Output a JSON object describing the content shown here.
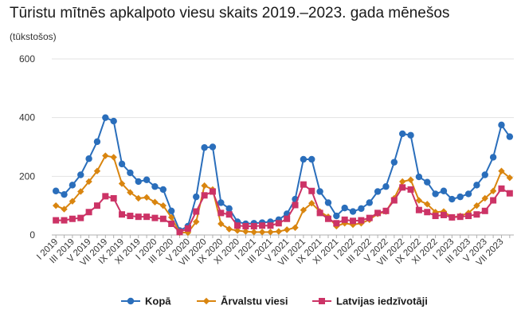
{
  "chart_data": {
    "type": "line",
    "title": "Tūristu mītnēs apkalpoto viesu skaits 2019.–2023. gada mēnešos",
    "subtitle": "(tūkstošos)",
    "xlabel": "",
    "ylabel": "",
    "ylim": [
      0,
      600
    ],
    "yticks": [
      0,
      200,
      400,
      600
    ],
    "grid": "horizontal",
    "legend_position": "bottom",
    "x": [
      "I 2019",
      "II 2019",
      "III 2019",
      "IV 2019",
      "V 2019",
      "VI 2019",
      "VII 2019",
      "VIII 2019",
      "IX 2019",
      "X 2019",
      "XI 2019",
      "XII 2019",
      "I 2020",
      "II 2020",
      "III 2020",
      "IV 2020",
      "V 2020",
      "VI 2020",
      "VII 2020",
      "VIII 2020",
      "IX 2020",
      "X 2020",
      "XI 2020",
      "XII 2020",
      "I 2021",
      "II 2021",
      "III 2021",
      "IV 2021",
      "V 2021",
      "VI 2021",
      "VII 2021",
      "VIII 2021",
      "IX 2021",
      "X 2021",
      "XI 2021",
      "XII 2021",
      "I 2022",
      "II 2022",
      "III 2022",
      "IV 2022",
      "V 2022",
      "VI 2022",
      "VII 2022",
      "VIII 2022",
      "IX 2022",
      "X 2022",
      "XI 2022",
      "XII 2022",
      "I 2023",
      "II 2023",
      "III 2023",
      "IV 2023",
      "V 2023",
      "VI 2023",
      "VII 2023",
      "VIII 2023"
    ],
    "x_tick_labels": [
      "I 2019",
      "III 2019",
      "V 2019",
      "VII 2019",
      "IX 2019",
      "XI 2019",
      "I 2020",
      "III 2020",
      "V 2020",
      "VII 2020",
      "IX 2020",
      "XI 2020",
      "I 2021",
      "III 2021",
      "V 2021",
      "VII 2021",
      "IX 2021",
      "XI 2021",
      "I 2022",
      "III 2022",
      "V 2022",
      "VII 2022",
      "IX 2022",
      "XI 2022",
      "I 2023",
      "III 2023",
      "V 2023",
      "VII 2023"
    ],
    "series": [
      {
        "name": "Kopā",
        "color": "#2a6ebb",
        "marker": "circle",
        "values": [
          150,
          138,
          170,
          205,
          260,
          318,
          400,
          388,
          242,
          212,
          182,
          188,
          165,
          155,
          82,
          15,
          30,
          130,
          298,
          300,
          110,
          90,
          45,
          38,
          40,
          42,
          45,
          52,
          72,
          122,
          258,
          258,
          148,
          110,
          65,
          92,
          80,
          90,
          110,
          148,
          165,
          248,
          345,
          340,
          198,
          180,
          140,
          150,
          122,
          130,
          140,
          170,
          205,
          265,
          375,
          335
        ]
      },
      {
        "name": "Ārvalstu viesi",
        "color": "#d9850f",
        "marker": "diamond",
        "values": [
          100,
          88,
          115,
          148,
          182,
          218,
          270,
          265,
          175,
          145,
          125,
          128,
          112,
          100,
          60,
          8,
          8,
          45,
          168,
          155,
          38,
          20,
          15,
          12,
          10,
          10,
          10,
          12,
          18,
          25,
          85,
          108,
          80,
          62,
          30,
          40,
          35,
          40,
          52,
          72,
          80,
          125,
          182,
          188,
          118,
          105,
          78,
          80,
          60,
          65,
          75,
          100,
          125,
          150,
          218,
          195
        ]
      },
      {
        "name": "Latvijas iedzīvotāji",
        "color": "#cc3366",
        "marker": "square",
        "values": [
          50,
          50,
          55,
          58,
          78,
          100,
          132,
          125,
          70,
          65,
          62,
          62,
          58,
          55,
          38,
          10,
          22,
          80,
          135,
          148,
          75,
          70,
          32,
          30,
          30,
          32,
          32,
          40,
          55,
          102,
          172,
          150,
          75,
          55,
          40,
          52,
          48,
          50,
          58,
          75,
          82,
          118,
          162,
          155,
          85,
          78,
          65,
          68,
          60,
          62,
          65,
          70,
          82,
          118,
          158,
          142
        ]
      }
    ]
  }
}
